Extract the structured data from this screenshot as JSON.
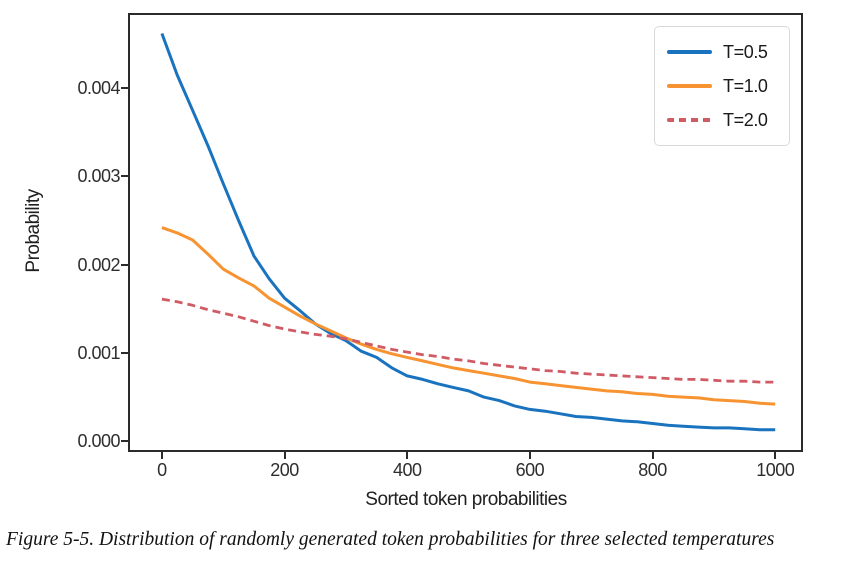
{
  "figure": {
    "caption": "Figure 5-5. Distribution of randomly generated token probabilities for three selected temperatures"
  },
  "chart_data": {
    "type": "line",
    "title": "",
    "xlabel": "Sorted token probabilities",
    "ylabel": "Probability",
    "xlim": [
      -52,
      1042
    ],
    "ylim": [
      -0.0001,
      0.00483
    ],
    "xticks": [
      0,
      200,
      400,
      600,
      800,
      1000
    ],
    "yticks": [
      0,
      0.001,
      0.002,
      0.003,
      0.004
    ],
    "ytick_labels": [
      "0.000",
      "0.001",
      "0.002",
      "0.003",
      "0.004"
    ],
    "grid": false,
    "legend_position": "upper right",
    "x": [
      0,
      25,
      50,
      75,
      100,
      125,
      150,
      175,
      200,
      225,
      250,
      275,
      300,
      325,
      350,
      375,
      400,
      425,
      450,
      475,
      500,
      525,
      550,
      575,
      600,
      625,
      650,
      675,
      700,
      725,
      750,
      775,
      800,
      825,
      850,
      875,
      900,
      925,
      950,
      975,
      1000
    ],
    "series": [
      {
        "name": "T=0.5",
        "color": "#1a73be",
        "style": "solid",
        "values": [
          0.00462,
          0.00415,
          0.00375,
          0.00335,
          0.00292,
          0.0025,
          0.0021,
          0.00184,
          0.00162,
          0.00148,
          0.00133,
          0.00122,
          0.00114,
          0.00102,
          0.00095,
          0.00083,
          0.00074,
          0.0007,
          0.00065,
          0.00061,
          0.00057,
          0.0005,
          0.00046,
          0.0004,
          0.00036,
          0.00034,
          0.00031,
          0.00028,
          0.00027,
          0.00025,
          0.00023,
          0.00022,
          0.0002,
          0.00018,
          0.00017,
          0.00016,
          0.00015,
          0.00015,
          0.00014,
          0.00013,
          0.00013
        ]
      },
      {
        "name": "T=1.0",
        "color": "#f79331",
        "style": "solid",
        "values": [
          0.00242,
          0.00236,
          0.00228,
          0.00212,
          0.00195,
          0.00185,
          0.00176,
          0.00162,
          0.00152,
          0.00142,
          0.00133,
          0.00125,
          0.00117,
          0.0011,
          0.00104,
          0.00099,
          0.00095,
          0.00091,
          0.00087,
          0.00083,
          0.0008,
          0.00077,
          0.00074,
          0.00071,
          0.00067,
          0.00065,
          0.00063,
          0.00061,
          0.00059,
          0.00057,
          0.00056,
          0.00054,
          0.00053,
          0.00051,
          0.0005,
          0.00049,
          0.00047,
          0.00046,
          0.00045,
          0.00043,
          0.00042
        ]
      },
      {
        "name": "T=2.0",
        "color": "#d05b64",
        "style": "dashed",
        "values": [
          0.00161,
          0.00158,
          0.00154,
          0.00149,
          0.00145,
          0.00141,
          0.00136,
          0.00131,
          0.00127,
          0.00124,
          0.00121,
          0.00119,
          0.00116,
          0.00112,
          0.00108,
          0.00104,
          0.00101,
          0.00098,
          0.00096,
          0.00093,
          0.00091,
          0.00088,
          0.00086,
          0.00084,
          0.00082,
          0.0008,
          0.00079,
          0.00077,
          0.00076,
          0.00075,
          0.00074,
          0.00073,
          0.00072,
          0.00071,
          0.0007,
          0.0007,
          0.00069,
          0.00068,
          0.00068,
          0.00067,
          0.00067
        ]
      }
    ]
  }
}
